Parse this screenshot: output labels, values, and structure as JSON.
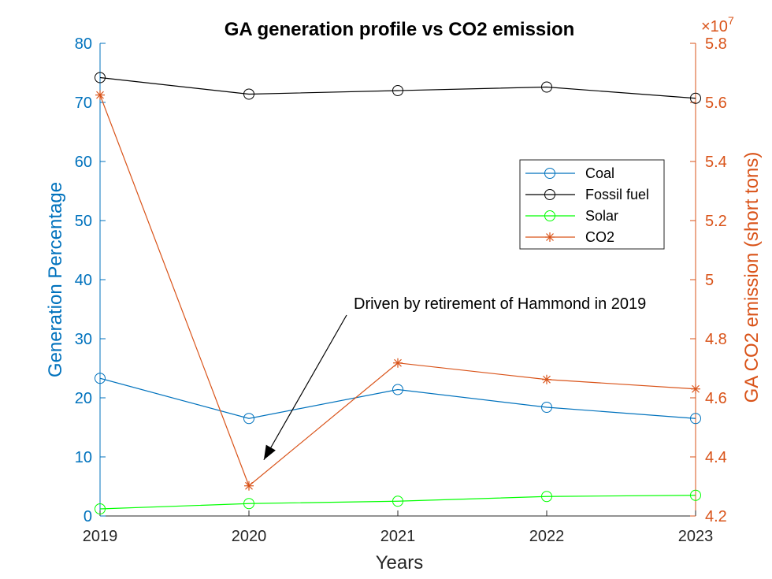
{
  "chart_data": {
    "type": "line",
    "title": "GA generation profile vs CO2 emission",
    "xlabel": "Years",
    "ylabel_left": "Generation Percentage",
    "ylabel_right": "GA CO2 emission (short tons)",
    "x": [
      2019,
      2020,
      2021,
      2022,
      2023
    ],
    "xlim": [
      2019,
      2023
    ],
    "ylim_left": [
      0,
      80
    ],
    "yticks_left": [
      0,
      10,
      20,
      30,
      40,
      50,
      60,
      70,
      80
    ],
    "ylim_right": [
      4.2,
      5.8
    ],
    "yticks_right": [
      "4.2",
      "4.4",
      "4.6",
      "4.8",
      "5",
      "5.2",
      "5.4",
      "5.6",
      "5.8"
    ],
    "right_exponent_base": "×10",
    "right_exponent_power": "7",
    "grid": false,
    "legend_position": "upper-right-inside",
    "colors": {
      "left_axis": "#0072BD",
      "right_axis": "#D95319"
    },
    "series": [
      {
        "name": "Coal",
        "axis": "left",
        "color": "#0072BD",
        "marker": "circle",
        "values": [
          23.3,
          16.5,
          21.4,
          18.4,
          16.5
        ]
      },
      {
        "name": "Fossil fuel",
        "axis": "left",
        "color": "#000000",
        "marker": "circle",
        "values": [
          74.2,
          71.4,
          72.0,
          72.6,
          70.7
        ]
      },
      {
        "name": "Solar",
        "axis": "left",
        "color": "#00FF00",
        "marker": "circle",
        "values": [
          1.2,
          2.1,
          2.5,
          3.3,
          3.5
        ]
      },
      {
        "name": "CO2",
        "axis": "right",
        "color": "#D95319",
        "marker": "star",
        "values": [
          5.625,
          4.302,
          4.718,
          4.662,
          4.63
        ]
      }
    ],
    "annotation": {
      "text": "Driven by retirement of Hammond in 2019",
      "target_x": 2020.1,
      "target_y": 9.5
    }
  }
}
